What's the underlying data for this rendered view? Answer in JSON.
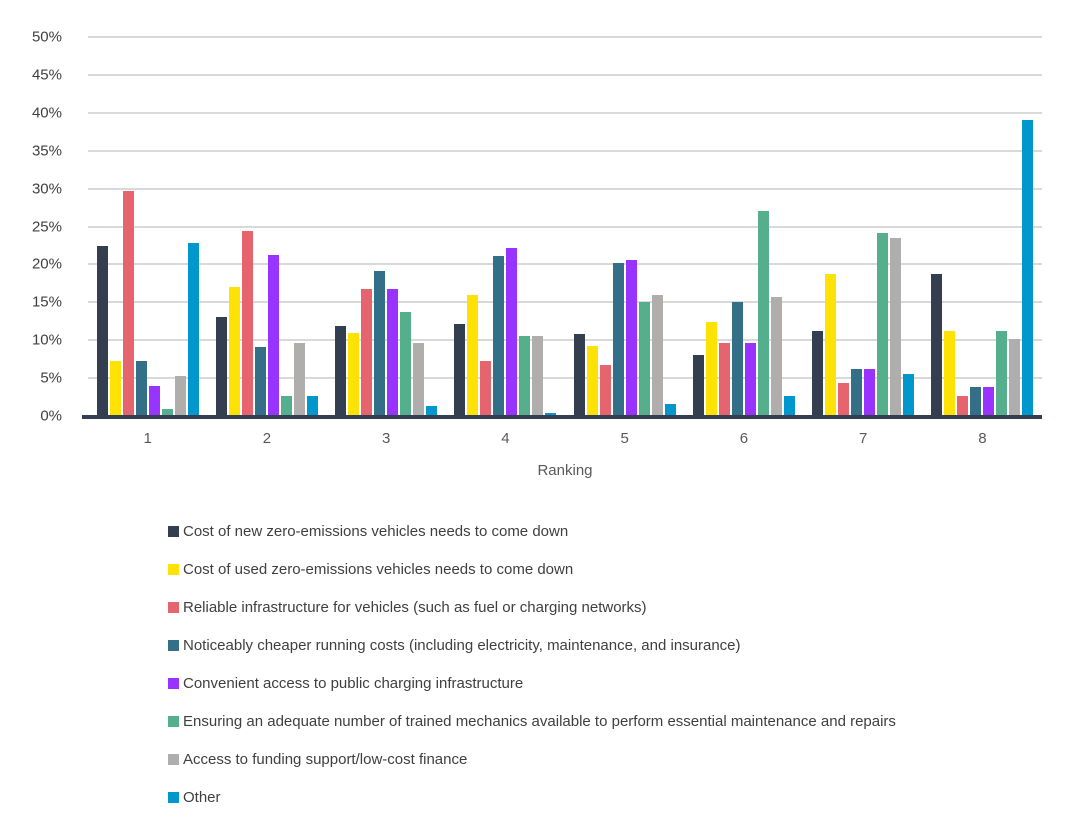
{
  "chart_data": {
    "type": "bar",
    "title": "",
    "xlabel": "Ranking",
    "ylabel": "",
    "ylim": [
      0,
      50
    ],
    "ytick_step": 5,
    "ytick_labels": [
      "0%",
      "5%",
      "10%",
      "15%",
      "20%",
      "25%",
      "30%",
      "35%",
      "40%",
      "45%",
      "50%"
    ],
    "grid": true,
    "legend_position": "bottom-left",
    "categories": [
      "1",
      "2",
      "3",
      "4",
      "5",
      "6",
      "7",
      "8"
    ],
    "series": [
      {
        "name": "Cost of new zero-emissions vehicles needs to come down",
        "color": "#333f50",
        "values": [
          22.4,
          13.0,
          11.9,
          12.1,
          10.8,
          8.0,
          11.2,
          18.7
        ]
      },
      {
        "name": "Cost of used zero-emissions vehicles needs to come down",
        "color": "#ffe205",
        "values": [
          7.3,
          17.0,
          11.0,
          16.0,
          9.2,
          12.4,
          18.7,
          11.2
        ]
      },
      {
        "name": "Reliable infrastructure for vehicles (such as fuel or charging networks)",
        "color": "#e5646e",
        "values": [
          29.7,
          24.4,
          16.8,
          7.2,
          6.7,
          9.6,
          4.4,
          2.6
        ]
      },
      {
        "name": "Noticeably cheaper running costs (including electricity, maintenance, and insurance)",
        "color": "#336f87",
        "values": [
          7.3,
          9.1,
          19.1,
          21.1,
          20.2,
          15.1,
          6.2,
          3.8
        ]
      },
      {
        "name": "Convenient access to public charging infrastructure",
        "color": "#9933ff",
        "values": [
          4.0,
          21.3,
          16.8,
          22.2,
          20.6,
          9.6,
          6.2,
          3.8
        ]
      },
      {
        "name": "Ensuring an adequate number of trained mechanics available to perform essential maintenance and repairs",
        "color": "#55ae8c",
        "values": [
          0.9,
          2.6,
          13.7,
          10.5,
          15.0,
          27.0,
          24.2,
          11.2
        ]
      },
      {
        "name": "Access to funding support/low-cost finance",
        "color": "#b0aeac",
        "values": [
          5.3,
          9.6,
          9.6,
          10.5,
          16.0,
          15.7,
          23.5,
          10.1
        ]
      },
      {
        "name": "Other",
        "color": "#0098cc",
        "values": [
          22.8,
          2.6,
          1.3,
          0.4,
          1.6,
          2.7,
          5.6,
          39.0
        ]
      }
    ],
    "colors": {
      "gridline": "#d9d9d9",
      "axis_line": "#333f50",
      "tick_text": "#404040",
      "category_text": "#595959",
      "legend_text": "#3f3f3f"
    }
  }
}
